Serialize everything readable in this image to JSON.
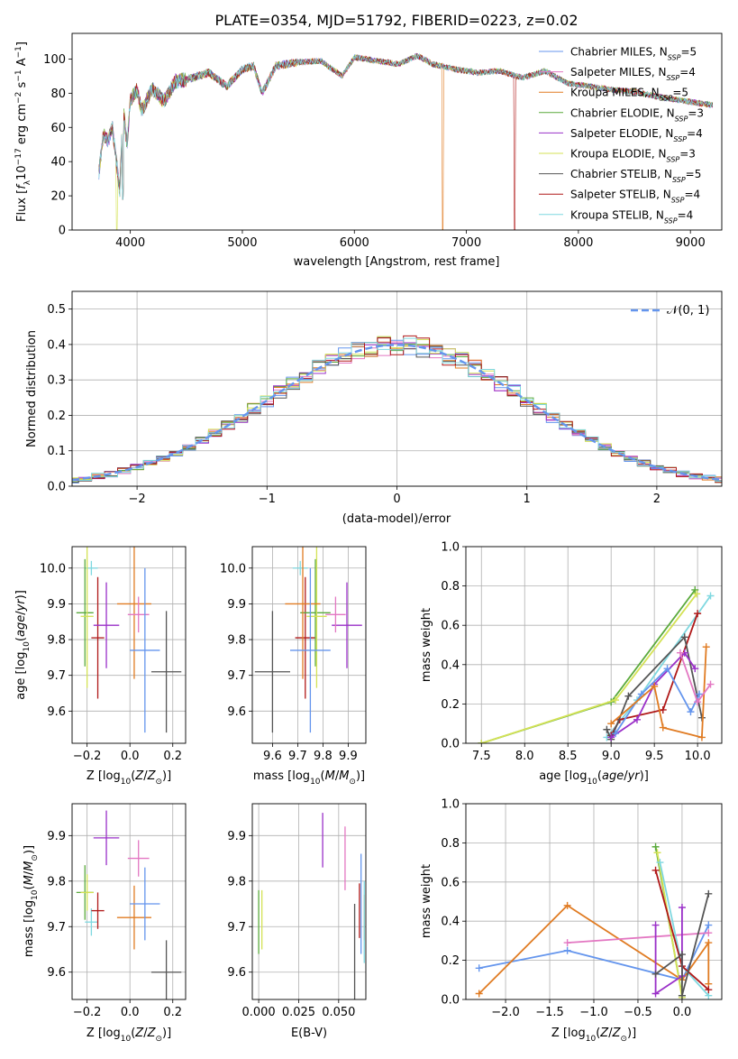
{
  "chart_data": [
    {
      "type": "line",
      "title": "PLATE=0354, MJD=51792, FIBERID=0223, z=0.02",
      "xlabel": "wavelength [Angstrom, rest frame]",
      "ylabel": "Flux [f_λ 10^-17 erg cm^-2 s^-1 A^-1]",
      "xlim": [
        3480,
        9280
      ],
      "ylim": [
        0,
        115
      ],
      "xticks": [
        4000,
        5000,
        6000,
        7000,
        8000,
        9000
      ],
      "yticks": [
        0,
        20,
        40,
        60,
        80,
        100
      ],
      "legend_position": "top-right",
      "spectrum_anchor": [
        [
          3720,
          34
        ],
        [
          3760,
          56
        ],
        [
          3800,
          52
        ],
        [
          3840,
          60
        ],
        [
          3880,
          38
        ],
        [
          3905,
          22
        ],
        [
          3935,
          72
        ],
        [
          3970,
          50
        ],
        [
          4000,
          76
        ],
        [
          4060,
          82
        ],
        [
          4102,
          70
        ],
        [
          4200,
          83
        ],
        [
          4300,
          75
        ],
        [
          4340,
          80
        ],
        [
          4400,
          87
        ],
        [
          4500,
          88
        ],
        [
          4600,
          90
        ],
        [
          4700,
          92
        ],
        [
          4861,
          84
        ],
        [
          5000,
          94
        ],
        [
          5100,
          96
        ],
        [
          5175,
          80
        ],
        [
          5300,
          96
        ],
        [
          5500,
          98
        ],
        [
          5700,
          99
        ],
        [
          5890,
          90
        ],
        [
          6000,
          101
        ],
        [
          6200,
          99
        ],
        [
          6400,
          97
        ],
        [
          6563,
          102
        ],
        [
          6700,
          97
        ],
        [
          6900,
          94
        ],
        [
          7100,
          92
        ],
        [
          7300,
          93
        ],
        [
          7500,
          89
        ],
        [
          7700,
          93
        ],
        [
          7900,
          86
        ],
        [
          8100,
          84
        ],
        [
          8300,
          82
        ],
        [
          8500,
          81
        ],
        [
          8700,
          78
        ],
        [
          8900,
          76
        ],
        [
          9100,
          74
        ],
        [
          9200,
          73
        ]
      ],
      "spectrum_dips": [
        [
          3933,
          18
        ],
        [
          6790,
          0
        ],
        [
          7430,
          0
        ],
        [
          3880,
          0
        ]
      ],
      "series": [
        {
          "name": "Chabrier MILES, N_SSP=5",
          "color": "#6495ed"
        },
        {
          "name": "Salpeter MILES, N_SSP=4",
          "color": "#e377c2"
        },
        {
          "name": "Kroupa MILES, N_SSP=5",
          "color": "#e07b22"
        },
        {
          "name": "Chabrier ELODIE, N_SSP=3",
          "color": "#5aaa3c"
        },
        {
          "name": "Salpeter ELODIE, N_SSP=4",
          "color": "#9a30c8"
        },
        {
          "name": "Kroupa ELODIE, N_SSP=3",
          "color": "#d4e255"
        },
        {
          "name": "Chabrier STELIB, N_SSP=5",
          "color": "#555555"
        },
        {
          "name": "Salpeter STELIB, N_SSP=4",
          "color": "#b01818"
        },
        {
          "name": "Kroupa STELIB, N_SSP=4",
          "color": "#7fd8e0"
        }
      ]
    },
    {
      "type": "histogram",
      "title": "",
      "xlabel": "(data-model)/error",
      "ylabel": "Normed distribution",
      "xlim": [
        -2.5,
        2.5
      ],
      "ylim": [
        0,
        0.55
      ],
      "xticks": [
        -2,
        -1,
        0,
        1,
        2
      ],
      "yticks": [
        0.0,
        0.1,
        0.2,
        0.3,
        0.4,
        0.5
      ],
      "grid": true,
      "legend_position": "top-right",
      "reference_curve": {
        "name": "𝒩(0, 1)",
        "color": "#6495ed"
      },
      "bin_width": 0.1
    },
    {
      "type": "scatter",
      "xlabel": "Z [log10(Z/Z⊙)]",
      "ylabel": "age [log10(age/yr)]",
      "xlim": [
        -0.27,
        0.26
      ],
      "ylim": [
        9.51,
        10.06
      ],
      "xticks": [
        -0.2,
        0.0,
        0.2
      ],
      "yticks": [
        9.6,
        9.7,
        9.8,
        9.9,
        10.0
      ],
      "grid": true,
      "points": [
        {
          "color": "#7fd8e0",
          "x": -0.18,
          "xerr": 0.03,
          "y": 10.0,
          "yerr": 0.02
        },
        {
          "color": "#b01818",
          "x": -0.15,
          "xerr": 0.03,
          "y": 9.805,
          "yerr": 0.17
        },
        {
          "color": "#5aaa3c",
          "x": -0.21,
          "xerr": 0.04,
          "y": 9.875,
          "yerr": 0.15
        },
        {
          "color": "#d4e255",
          "x": -0.2,
          "xerr": 0.03,
          "y": 9.865,
          "yerr": 0.2
        },
        {
          "color": "#9a30c8",
          "x": -0.11,
          "xerr": 0.06,
          "y": 9.84,
          "yerr": 0.12
        },
        {
          "color": "#e07b22",
          "x": 0.02,
          "xerr": 0.08,
          "y": 9.9,
          "yerr": 0.21
        },
        {
          "color": "#e377c2",
          "x": 0.04,
          "xerr": 0.05,
          "y": 9.87,
          "yerr": 0.05
        },
        {
          "color": "#6495ed",
          "x": 0.07,
          "xerr": 0.07,
          "y": 9.77,
          "yerr": 0.23
        },
        {
          "color": "#555555",
          "x": 0.17,
          "xerr": 0.07,
          "y": 9.71,
          "yerr": 0.17
        }
      ]
    },
    {
      "type": "scatter",
      "xlabel": "mass [log10(M/M⊙)]",
      "ylabel": "",
      "xlim": [
        9.52,
        9.97
      ],
      "ylim": [
        9.51,
        10.06
      ],
      "xticks": [
        9.6,
        9.7,
        9.8,
        9.9
      ],
      "yticks": [
        9.6,
        9.7,
        9.8,
        9.9,
        10.0
      ],
      "grid": true,
      "points": [
        {
          "color": "#7fd8e0",
          "x": 9.71,
          "xerr": 0.03,
          "y": 10.0,
          "yerr": 0.02
        },
        {
          "color": "#b01818",
          "x": 9.73,
          "xerr": 0.04,
          "y": 9.805,
          "yerr": 0.17
        },
        {
          "color": "#5aaa3c",
          "x": 9.77,
          "xerr": 0.06,
          "y": 9.875,
          "yerr": 0.15
        },
        {
          "color": "#d4e255",
          "x": 9.775,
          "xerr": 0.04,
          "y": 9.865,
          "yerr": 0.2
        },
        {
          "color": "#9a30c8",
          "x": 9.895,
          "xerr": 0.06,
          "y": 9.84,
          "yerr": 0.12
        },
        {
          "color": "#e07b22",
          "x": 9.72,
          "xerr": 0.07,
          "y": 9.9,
          "yerr": 0.21
        },
        {
          "color": "#e377c2",
          "x": 9.85,
          "xerr": 0.04,
          "y": 9.87,
          "yerr": 0.05
        },
        {
          "color": "#6495ed",
          "x": 9.75,
          "xerr": 0.08,
          "y": 9.77,
          "yerr": 0.23
        },
        {
          "color": "#555555",
          "x": 9.6,
          "xerr": 0.07,
          "y": 9.71,
          "yerr": 0.17
        }
      ]
    },
    {
      "type": "line",
      "xlabel": "age [log10(age/yr)]",
      "ylabel": "mass weight",
      "xlim": [
        7.32,
        10.28
      ],
      "ylim": [
        0.0,
        1.0
      ],
      "xticks": [
        7.5,
        8.0,
        8.5,
        9.0,
        9.5,
        10.0
      ],
      "yticks": [
        0.0,
        0.2,
        0.4,
        0.6,
        0.8,
        1.0
      ],
      "grid": true,
      "series": [
        {
          "color": "#5aaa3c",
          "x": [
            7.5,
            9.0,
            9.97
          ],
          "y": [
            0.0,
            0.21,
            0.78
          ]
        },
        {
          "color": "#d4e255",
          "x": [
            7.5,
            9.05,
            9.99
          ],
          "y": [
            0.0,
            0.22,
            0.76
          ]
        },
        {
          "color": "#7fd8e0",
          "x": [
            8.95,
            9.3,
            10.15
          ],
          "y": [
            0.03,
            0.22,
            0.75
          ]
        },
        {
          "color": "#b01818",
          "x": [
            9.0,
            9.1,
            9.6,
            10.0
          ],
          "y": [
            0.04,
            0.12,
            0.17,
            0.66
          ]
        },
        {
          "color": "#555555",
          "x": [
            8.95,
            9.0,
            9.2,
            9.85,
            10.05
          ],
          "y": [
            0.07,
            0.02,
            0.24,
            0.54,
            0.13
          ]
        },
        {
          "color": "#9a30c8",
          "x": [
            9.0,
            9.3,
            9.5,
            9.85,
            9.97
          ],
          "y": [
            0.03,
            0.12,
            0.3,
            0.46,
            0.38
          ]
        },
        {
          "color": "#6495ed",
          "x": [
            9.05,
            9.35,
            9.65,
            9.92,
            10.02
          ],
          "y": [
            0.05,
            0.25,
            0.38,
            0.16,
            0.25
          ]
        },
        {
          "color": "#e07b22",
          "x": [
            9.0,
            9.5,
            9.6,
            10.05,
            10.1
          ],
          "y": [
            0.1,
            0.29,
            0.08,
            0.03,
            0.49
          ]
        },
        {
          "color": "#e377c2",
          "x": [
            9.8,
            10.0,
            10.15
          ],
          "y": [
            0.46,
            0.21,
            0.3
          ]
        }
      ]
    },
    {
      "type": "scatter",
      "xlabel": "Z [log10(Z/Z⊙)]",
      "ylabel": "mass [log10(M/M⊙)]",
      "xlim": [
        -0.27,
        0.26
      ],
      "ylim": [
        9.54,
        9.97
      ],
      "xticks": [
        -0.2,
        0.0,
        0.2
      ],
      "yticks": [
        9.6,
        9.7,
        9.8,
        9.9
      ],
      "grid": true,
      "points": [
        {
          "color": "#7fd8e0",
          "x": -0.18,
          "xerr": 0.03,
          "y": 9.71,
          "yerr": 0.03
        },
        {
          "color": "#b01818",
          "x": -0.15,
          "xerr": 0.03,
          "y": 9.735,
          "yerr": 0.04
        },
        {
          "color": "#5aaa3c",
          "x": -0.21,
          "xerr": 0.04,
          "y": 9.775,
          "yerr": 0.06
        },
        {
          "color": "#d4e255",
          "x": -0.2,
          "xerr": 0.03,
          "y": 9.775,
          "yerr": 0.04
        },
        {
          "color": "#9a30c8",
          "x": -0.11,
          "xerr": 0.06,
          "y": 9.895,
          "yerr": 0.06
        },
        {
          "color": "#e07b22",
          "x": 0.02,
          "xerr": 0.08,
          "y": 9.72,
          "yerr": 0.07
        },
        {
          "color": "#e377c2",
          "x": 0.04,
          "xerr": 0.05,
          "y": 9.85,
          "yerr": 0.04
        },
        {
          "color": "#6495ed",
          "x": 0.07,
          "xerr": 0.07,
          "y": 9.75,
          "yerr": 0.08
        },
        {
          "color": "#555555",
          "x": 0.17,
          "xerr": 0.07,
          "y": 9.6,
          "yerr": 0.07
        }
      ]
    },
    {
      "type": "scatter",
      "xlabel": "E(B-V)",
      "ylabel": "",
      "xlim": [
        -0.004,
        0.067
      ],
      "ylim": [
        9.54,
        9.97
      ],
      "xticks": [
        0.0,
        0.025,
        0.05
      ],
      "xticklabels": [
        "0.000",
        "0.025",
        "0.050"
      ],
      "yticks": [
        9.6,
        9.7,
        9.8,
        9.9
      ],
      "grid": true,
      "points": [
        {
          "color": "#5aaa3c",
          "x": 0.0,
          "y": 9.71,
          "yerr": 0.07
        },
        {
          "color": "#d4e255",
          "x": 0.002,
          "y": 9.715,
          "yerr": 0.065
        },
        {
          "color": "#9a30c8",
          "x": 0.04,
          "y": 9.89,
          "yerr": 0.06
        },
        {
          "color": "#e377c2",
          "x": 0.054,
          "y": 9.85,
          "yerr": 0.07
        },
        {
          "color": "#555555",
          "x": 0.06,
          "y": 9.62,
          "yerr": 0.13
        },
        {
          "color": "#b01818",
          "x": 0.063,
          "y": 9.735,
          "yerr": 0.06
        },
        {
          "color": "#6495ed",
          "x": 0.064,
          "y": 9.75,
          "yerr": 0.11
        },
        {
          "color": "#e07b22",
          "x": 0.066,
          "y": 9.72,
          "yerr": 0.05
        },
        {
          "color": "#7fd8e0",
          "x": 0.066,
          "y": 9.71,
          "yerr": 0.09
        }
      ]
    },
    {
      "type": "line",
      "xlabel": "Z [log10(Z/Z⊙)]",
      "ylabel": "mass weight",
      "xlim": [
        -2.45,
        0.45
      ],
      "ylim": [
        0.0,
        1.0
      ],
      "xticks": [
        -2.0,
        -1.5,
        -1.0,
        -0.5,
        0.0
      ],
      "yticks": [
        0.0,
        0.2,
        0.4,
        0.6,
        0.8,
        1.0
      ],
      "grid": true,
      "series": [
        {
          "color": "#6495ed",
          "x": [
            -2.3,
            -1.3,
            0.0,
            0.3
          ],
          "y": [
            0.16,
            0.25,
            0.1,
            0.38
          ]
        },
        {
          "color": "#e07b22",
          "x": [
            -2.3,
            -1.3,
            0.0,
            0.3,
            0.3
          ],
          "y": [
            0.03,
            0.48,
            0.1,
            0.29,
            0.08
          ]
        },
        {
          "color": "#e377c2",
          "x": [
            -1.3,
            0.3
          ],
          "y": [
            0.29,
            0.34
          ]
        },
        {
          "color": "#5aaa3c",
          "x": [
            -0.3,
            0.0
          ],
          "y": [
            0.78,
            0.02
          ]
        },
        {
          "color": "#d4e255",
          "x": [
            -0.28,
            0.0
          ],
          "y": [
            0.75,
            0.01
          ]
        },
        {
          "color": "#7fd8e0",
          "x": [
            -0.25,
            0.0,
            0.3
          ],
          "y": [
            0.7,
            0.17,
            0.02
          ]
        },
        {
          "color": "#b01818",
          "x": [
            -0.3,
            0.0,
            0.3
          ],
          "y": [
            0.66,
            0.17,
            0.05
          ]
        },
        {
          "color": "#9a30c8",
          "x": [
            -0.3,
            -0.3,
            0.0,
            0.0
          ],
          "y": [
            0.38,
            0.03,
            0.12,
            0.47
          ]
        },
        {
          "color": "#555555",
          "x": [
            -0.3,
            0.0,
            0.0,
            0.3
          ],
          "y": [
            0.13,
            0.23,
            0.02,
            0.54
          ]
        }
      ]
    }
  ]
}
